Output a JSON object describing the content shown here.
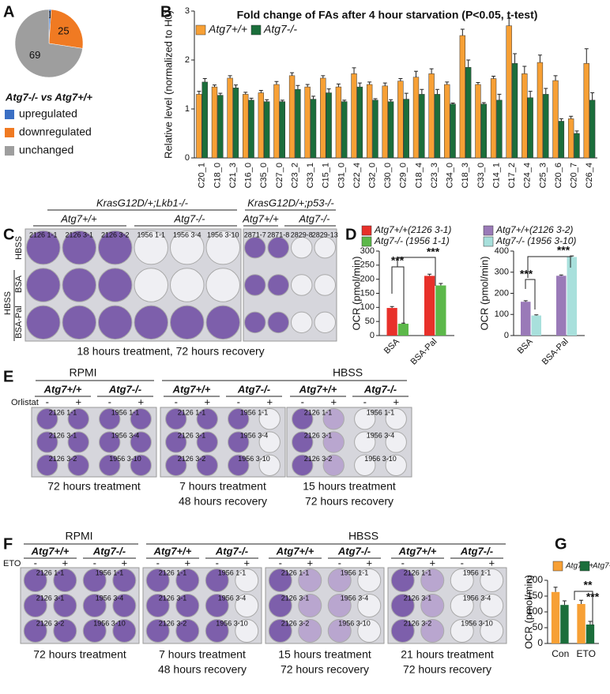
{
  "panel_letters": [
    "A",
    "B",
    "C",
    "D",
    "E",
    "F",
    "G"
  ],
  "chart_data": [
    {
      "type": "pie",
      "subtitle": "Atg7-/- vs Atg7+/+",
      "categories": [
        "upregulated",
        "downregulated",
        "unchanged"
      ],
      "values": [
        1,
        25,
        69
      ],
      "colors": [
        "#3a6fc4",
        "#f07a22",
        "#9e9e9e"
      ]
    },
    {
      "type": "bar",
      "title": "Fold change of FAs after 4 hour starvation (P<0.05, t-test)",
      "ylabel": "Relative level (normalized to H0)",
      "legend": "upper left",
      "categories": [
        "C20_1",
        "C18_0",
        "C21_3",
        "C16_0",
        "C35_0",
        "C27_0",
        "C23_2",
        "C33_1",
        "C15_1",
        "C31_0",
        "C22_4",
        "C32_0",
        "C30_0",
        "C29_0",
        "C18_4",
        "C23_3",
        "C34_0",
        "C18_3",
        "C33_0",
        "C14_1",
        "C17_2",
        "C24_4",
        "C25_3",
        "C20_6",
        "C20_7",
        "C26_4"
      ],
      "series": [
        {
          "name": "Atg7+/+",
          "color": "#f7a035",
          "values": [
            1.3,
            1.45,
            1.63,
            1.3,
            1.33,
            1.5,
            1.68,
            1.45,
            1.63,
            1.45,
            1.72,
            1.5,
            1.47,
            1.57,
            1.65,
            1.72,
            1.5,
            2.5,
            1.5,
            1.62,
            2.7,
            1.72,
            1.95,
            1.58,
            0.8,
            1.93
          ],
          "errors": [
            0.06,
            0.04,
            0.05,
            0.04,
            0.05,
            0.06,
            0.06,
            0.05,
            0.05,
            0.06,
            0.12,
            0.05,
            0.06,
            0.05,
            0.12,
            0.1,
            0.05,
            0.13,
            0.04,
            0.05,
            0.15,
            0.15,
            0.15,
            0.1,
            0.05,
            0.3
          ]
        },
        {
          "name": "Atg7-/-",
          "color": "#1b6e3b",
          "values": [
            1.55,
            1.28,
            1.43,
            1.18,
            1.15,
            1.15,
            1.4,
            1.2,
            1.33,
            1.15,
            1.45,
            1.18,
            1.15,
            1.2,
            1.3,
            1.3,
            1.1,
            1.85,
            1.1,
            1.18,
            1.93,
            1.23,
            1.3,
            0.75,
            0.5,
            1.18
          ],
          "errors": [
            0.07,
            0.04,
            0.06,
            0.04,
            0.04,
            0.03,
            0.08,
            0.06,
            0.08,
            0.03,
            0.08,
            0.03,
            0.04,
            0.12,
            0.1,
            0.1,
            0.02,
            0.15,
            0.03,
            0.12,
            0.2,
            0.13,
            0.12,
            0.05,
            0.05,
            0.15
          ]
        }
      ],
      "ylim": [
        0,
        3
      ],
      "yticks": [
        0,
        1,
        2,
        3
      ]
    },
    {
      "type": "bar",
      "ylabel": "OCR (pmol/min)",
      "categories": [
        "BSA",
        "BSA-Pal"
      ],
      "series": [
        {
          "name": "Atg7+/+(2126 3-1)",
          "color": "#e8302a",
          "values": [
            98,
            212
          ],
          "errors": [
            5,
            6
          ]
        },
        {
          "name": "Atg7-/- (1956 1-1)",
          "color": "#5cb84a",
          "values": [
            42,
            178
          ],
          "errors": [
            2,
            7
          ]
        }
      ],
      "ylim": [
        0,
        300
      ],
      "yticks": [
        0,
        50,
        100,
        150,
        200,
        250,
        300
      ],
      "annotations": [
        "***",
        "***"
      ]
    },
    {
      "type": "bar",
      "ylabel": "OCR (pmol/min)",
      "categories": [
        "BSA",
        "BSA-Pal"
      ],
      "series": [
        {
          "name": "Atg7+/+(2126 3-2)",
          "color": "#9a7ab8",
          "values": [
            160,
            283
          ],
          "errors": [
            5,
            4
          ]
        },
        {
          "name": "Atg7-/- (1956 3-10)",
          "color": "#a8e0dc",
          "values": [
            95,
            372
          ],
          "errors": [
            3,
            5
          ]
        }
      ],
      "ylim": [
        0,
        400
      ],
      "yticks": [
        0,
        100,
        200,
        300,
        400
      ],
      "annotations": [
        "***",
        "***"
      ]
    },
    {
      "type": "bar",
      "ylabel": "OCR (pmol/min)",
      "categories": [
        "Con",
        "ETO"
      ],
      "series": [
        {
          "name": "Atg7+/+",
          "color": "#f7a035",
          "values": [
            163,
            125
          ],
          "errors": [
            15,
            12
          ]
        },
        {
          "name": "Atg7-/-",
          "color": "#1b6e3b",
          "values": [
            122,
            60
          ],
          "errors": [
            13,
            10
          ]
        }
      ],
      "ylim": [
        0,
        200
      ],
      "yticks": [
        0,
        50,
        100,
        150,
        200
      ],
      "annotations": [
        "**",
        "***"
      ]
    }
  ],
  "panel_c": {
    "headers": [
      "KrasG12D/+;Lkb1-/-",
      "KrasG12D/+;p53-/-"
    ],
    "groups": [
      "Atg7+/+",
      "Atg7-/-",
      "Atg7+/+",
      "Atg7-/-"
    ],
    "row_labels": [
      "HBSS",
      "BSA",
      "BSA-Pal",
      "HBSS"
    ],
    "wells": [
      "2126 1-1",
      "2126 3-1",
      "2126 3-2",
      "1956 1-1",
      "1956 3-4",
      "1956 3-10",
      "2871-7",
      "2871-8",
      "2829-8",
      "2829-13"
    ],
    "caption": "18 hours treatment, 72 hours recovery"
  },
  "panel_e": {
    "headers": [
      "RPMI",
      "HBSS"
    ],
    "groups": [
      "Atg7+/+",
      "Atg7-/-"
    ],
    "treatment": "Orlistat",
    "doses": [
      "-",
      "+"
    ],
    "wells": [
      [
        "2126 1-1",
        "1956 1-1"
      ],
      [
        "2126 3-1",
        "1956 3-4"
      ],
      [
        "2126 3-2",
        "1956 3-10"
      ]
    ],
    "captions": [
      [
        "72 hours treatment"
      ],
      [
        "7 hours treatment",
        "48 hours recovery"
      ],
      [
        "15 hours treatment",
        "72 hours recovery"
      ]
    ]
  },
  "panel_f": {
    "headers": [
      "RPMI",
      "HBSS"
    ],
    "groups": [
      "Atg7+/+",
      "Atg7-/-"
    ],
    "treatment": "ETO",
    "doses": [
      "-",
      "+"
    ],
    "wells": [
      [
        "2126 1-1",
        "1956 1-1"
      ],
      [
        "2126 3-1",
        "1956 3-4"
      ],
      [
        "2126 3-2",
        "1956 3-10"
      ]
    ],
    "captions": [
      [
        "72 hours treatment"
      ],
      [
        "7 hours treatment",
        "48 hours recovery"
      ],
      [
        "15 hours treatment",
        "72 hours recovery"
      ],
      [
        "21 hours treatment",
        "72 hours recovery"
      ]
    ]
  }
}
